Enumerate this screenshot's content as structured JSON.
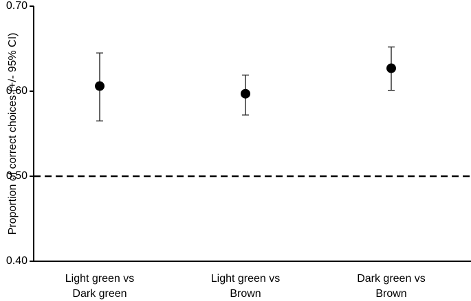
{
  "chart_data": {
    "type": "errorpoint",
    "ylabel": "Proportion of correct choices (+/- 95% CI)",
    "categories": [
      [
        "Light green vs",
        "Dark green"
      ],
      [
        "Light green vs",
        "Brown"
      ],
      [
        "Dark green vs",
        "Brown"
      ]
    ],
    "series": [
      {
        "color": "#000000",
        "values": [
          0.606,
          0.597,
          0.627
        ],
        "lower": [
          0.565,
          0.572,
          0.601
        ],
        "upper": [
          0.645,
          0.619,
          0.652
        ]
      }
    ],
    "ylim": [
      0.4,
      0.7
    ],
    "yticks": [
      {
        "value": 0.4,
        "label": "0.40"
      },
      {
        "value": 0.5,
        "label": "0.50"
      },
      {
        "value": 0.6,
        "label": "0.60"
      },
      {
        "value": 0.7,
        "label": "0.70"
      }
    ],
    "reference_line": 0.5
  }
}
